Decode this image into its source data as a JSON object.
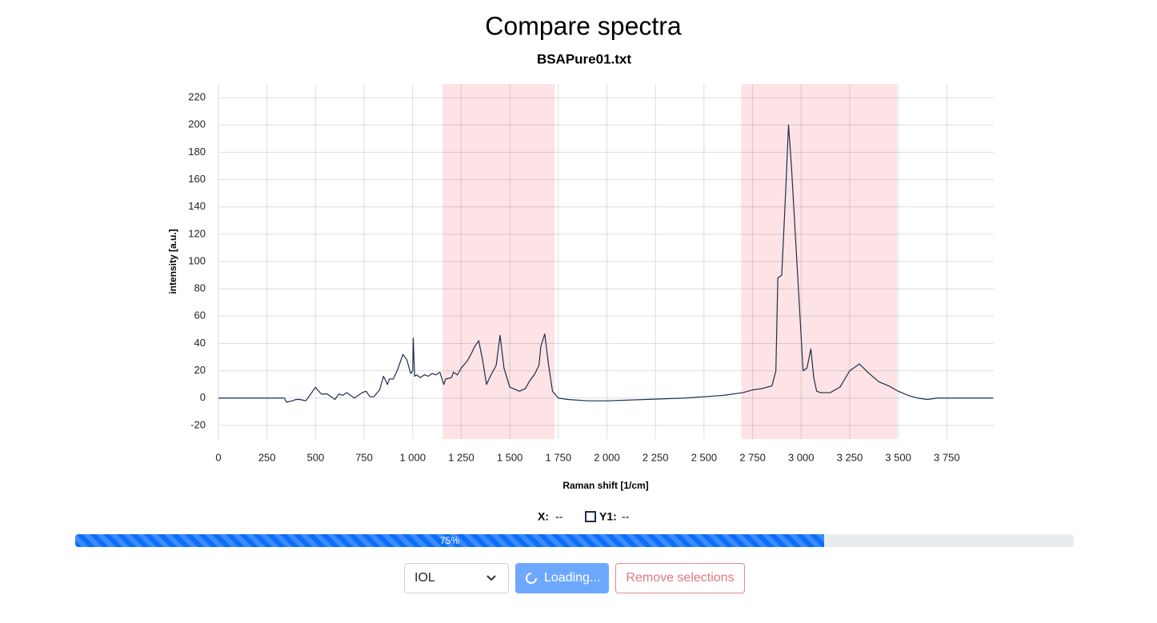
{
  "header": {
    "title": "Compare spectra",
    "subtitle": "BSAPure01.txt"
  },
  "chart_data": {
    "type": "line",
    "xlabel": "Raman shift [1/cm]",
    "ylabel": "intensity [a.u.]",
    "x": [
      0,
      340,
      350,
      380,
      400,
      420,
      450,
      500,
      510,
      530,
      560,
      600,
      620,
      640,
      660,
      680,
      700,
      740,
      760,
      780,
      800,
      830,
      850,
      870,
      880,
      900,
      920,
      950,
      970,
      990,
      1000,
      1003,
      1010,
      1020,
      1040,
      1060,
      1080,
      1100,
      1120,
      1140,
      1160,
      1170,
      1200,
      1210,
      1230,
      1250,
      1280,
      1300,
      1320,
      1340,
      1360,
      1380,
      1400,
      1430,
      1450,
      1470,
      1500,
      1550,
      1580,
      1600,
      1630,
      1650,
      1660,
      1680,
      1700,
      1720,
      1750,
      1800,
      1900,
      2000,
      2200,
      2400,
      2500,
      2600,
      2700,
      2750,
      2800,
      2850,
      2870,
      2880,
      2900,
      2920,
      2935,
      2950,
      2970,
      2990,
      3010,
      3030,
      3050,
      3065,
      3080,
      3100,
      3150,
      3200,
      3250,
      3300,
      3350,
      3400,
      3450,
      3500,
      3550,
      3600,
      3650,
      3700,
      3800,
      3990
    ],
    "values": [
      0,
      0,
      -3,
      -2,
      -1,
      -1,
      -2,
      8,
      6,
      3,
      3,
      -1,
      3,
      2,
      4,
      2,
      0,
      4,
      5,
      1,
      1,
      6,
      16,
      10,
      14,
      14,
      20,
      32,
      28,
      18,
      20,
      44,
      16,
      17,
      15,
      17,
      16,
      18,
      17,
      19,
      10,
      14,
      15,
      19,
      17,
      22,
      27,
      32,
      38,
      42,
      28,
      10,
      16,
      24,
      46,
      22,
      8,
      5,
      7,
      12,
      18,
      24,
      38,
      47,
      24,
      5,
      0,
      -1,
      -2,
      -2,
      -1,
      0,
      1,
      2,
      4,
      6,
      7,
      9,
      20,
      88,
      90,
      150,
      200,
      170,
      120,
      70,
      20,
      22,
      36,
      15,
      5,
      4,
      4,
      8,
      20,
      25,
      18,
      12,
      9,
      5,
      2,
      0,
      -1,
      0,
      0,
      0
    ],
    "color": "#1f2d4d",
    "selections": [
      [
        1154,
        1731
      ],
      [
        2691,
        3494
      ]
    ],
    "selection_color": "#fde3e5",
    "xlim": [
      0,
      4000
    ],
    "ylim": [
      -30,
      230
    ],
    "xticks": [
      0,
      250,
      500,
      750,
      {
        "value": 1000,
        "label": "1 000"
      },
      {
        "value": 1250,
        "label": "1 250"
      },
      {
        "value": 1500,
        "label": "1 500"
      },
      {
        "value": 1750,
        "label": "1 750"
      },
      {
        "value": 2000,
        "label": "2 000"
      },
      {
        "value": 2250,
        "label": "2 250"
      },
      {
        "value": 2500,
        "label": "2 500"
      },
      {
        "value": 2750,
        "label": "2 750"
      },
      {
        "value": 3000,
        "label": "3 000"
      },
      {
        "value": 3250,
        "label": "3 250"
      },
      {
        "value": 3500,
        "label": "3 500"
      },
      {
        "value": 3750,
        "label": "3 750"
      }
    ],
    "yticks": [
      -20,
      0,
      20,
      40,
      60,
      80,
      100,
      120,
      140,
      160,
      180,
      200,
      220
    ],
    "grid": true
  },
  "readout": {
    "x_label": "X:",
    "x_value": "--",
    "y_label": "Y1:",
    "y_value": "--"
  },
  "progress": {
    "value": 75,
    "label": "75%"
  },
  "controls": {
    "select": "IOL",
    "loading": "Loading...",
    "remove": "Remove selections"
  }
}
